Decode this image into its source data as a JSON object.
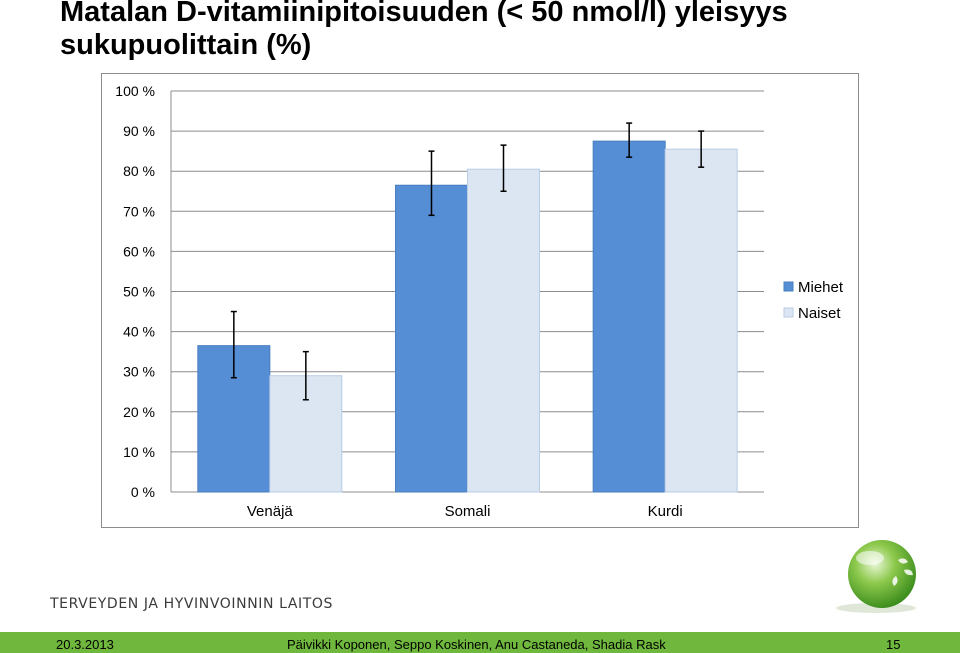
{
  "title": {
    "line1": "Matalan D-vitamiinipitoisuuden (< 50 nmol/l) yleisyys",
    "line2": "sukupuolittain (%)"
  },
  "organization": "TERVEYDEN JA HYVINVOINNIN LAITOS",
  "footer": {
    "date": "20.3.2013",
    "authors": "Päivikki Koponen, Seppo Koskinen, Anu Castaneda, Shadia Rask",
    "page": "15"
  },
  "colors": {
    "miehet": "#558ed5",
    "naiset": "#dce6f2",
    "footer": "#6fb83d"
  },
  "chart_data": {
    "type": "bar",
    "categories": [
      "Venäjä",
      "Somali",
      "Kurdi"
    ],
    "series": [
      {
        "name": "Miehet",
        "values": [
          36.5,
          76.5,
          87.5
        ],
        "error_low": [
          28.5,
          69,
          83.5
        ],
        "error_high": [
          45,
          85,
          92
        ]
      },
      {
        "name": "Naiset",
        "values": [
          29,
          80.5,
          85.5
        ],
        "error_low": [
          23,
          75,
          81
        ],
        "error_high": [
          35,
          86.5,
          90
        ]
      }
    ],
    "ylim": [
      0,
      100
    ],
    "yticks": [
      "0 %",
      "10 %",
      "20 %",
      "30 %",
      "40 %",
      "50 %",
      "60 %",
      "70 %",
      "80 %",
      "90 %",
      "100 %"
    ],
    "grid": true,
    "legend": "right"
  }
}
